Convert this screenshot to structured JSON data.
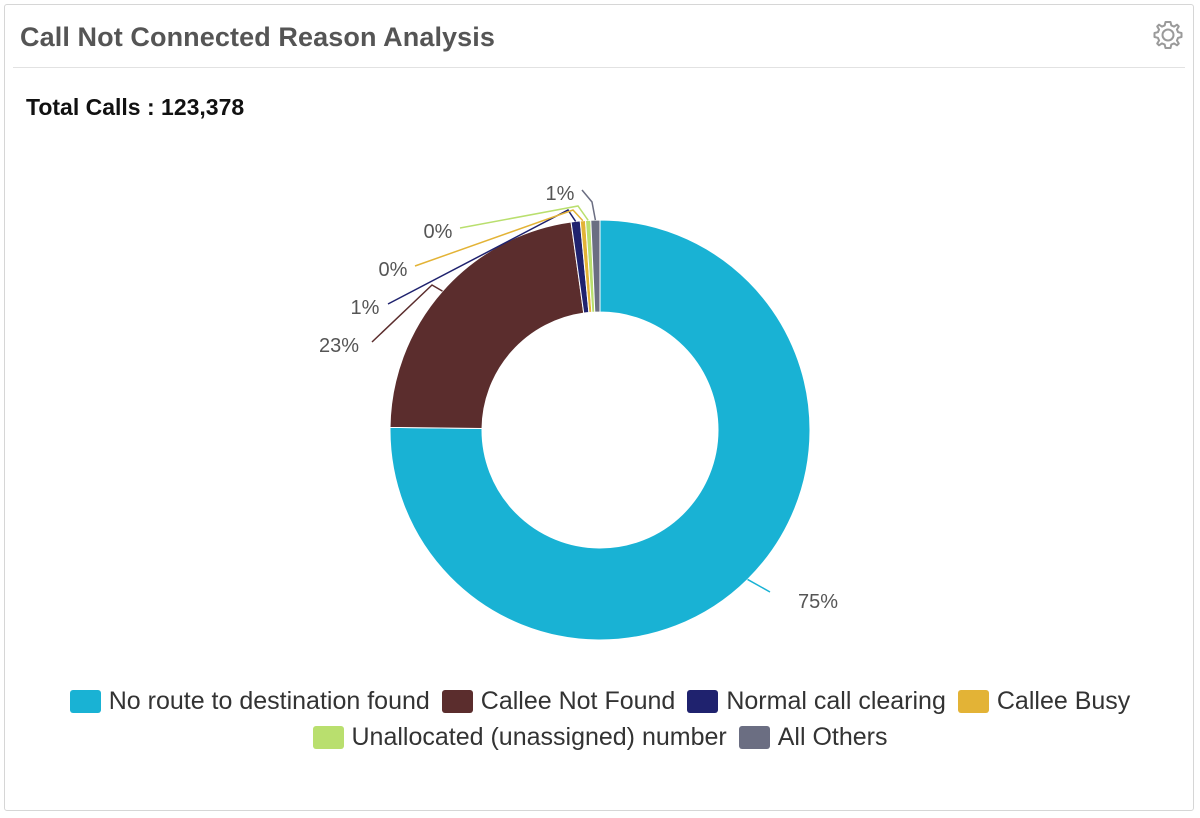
{
  "widget": {
    "title": "Call Not Connected Reason Analysis",
    "settings_icon": "gear-icon",
    "total_label": "Total Calls : 123,378"
  },
  "chart_data": {
    "type": "pie",
    "variant": "donut",
    "categories": [
      "No route to destination found",
      "Callee Not Found",
      "Normal call clearing",
      "Callee Busy",
      "Unallocated (unassigned) number",
      "All Others"
    ],
    "values": [
      75.2,
      22.6,
      0.7,
      0.4,
      0.4,
      0.7
    ],
    "labels": [
      "75%",
      "23%",
      "1%",
      "0%",
      "0%",
      "1%"
    ],
    "colors": [
      "#19b2d4",
      "#5b2d2d",
      "#1f226e",
      "#e3b336",
      "#b9df6e",
      "#6b6e82"
    ],
    "legend_position": "bottom"
  }
}
